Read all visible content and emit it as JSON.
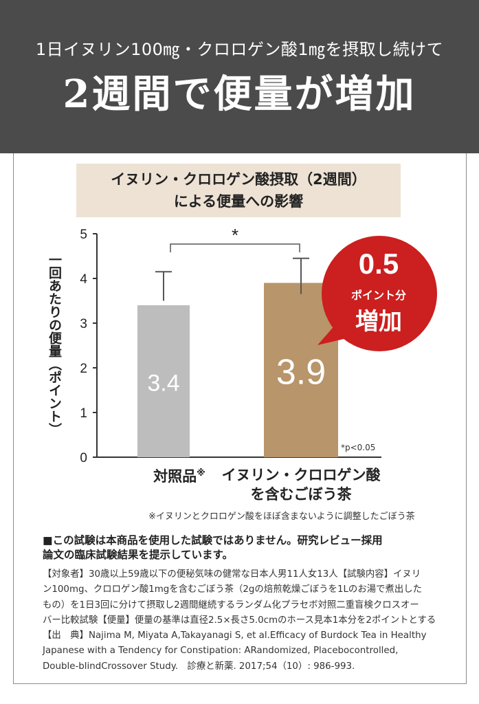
{
  "header": {
    "subtitle": "1日イヌリン100㎎・クロロゲン酸1㎎を摂取し続けて",
    "title": "2週間で便量が増加"
  },
  "chart_box": {
    "line1": "イヌリン・クロロゲン酸摂取（2週間）",
    "line2": "による便量への影響"
  },
  "chart_data": {
    "type": "bar",
    "title": "イヌリン・クロロゲン酸摂取（2週間）による便量への影響",
    "ylabel": "一回あたりの便量（ポイント）",
    "ylim": [
      0,
      5
    ],
    "yticks": [
      "0",
      "1",
      "2",
      "3",
      "4",
      "5"
    ],
    "categories": [
      "対照品※",
      "イヌリン・クロロゲン酸を含むごぼう茶"
    ],
    "values": [
      3.4,
      3.9
    ],
    "error_upper": [
      4.15,
      4.45
    ],
    "error_lower": [
      3.5,
      3.65
    ],
    "bar_labels": [
      "3.4",
      "3.9"
    ],
    "bar_colors": [
      "#bdbdbd",
      "#b8956a"
    ],
    "significance": "*",
    "significance_note": "*p<0.05",
    "grid": false
  },
  "categories_display": {
    "control_label": "対照品",
    "control_mark": "※",
    "treat_line1": "イヌリン・クロロゲン酸",
    "treat_line2": "を含むごぼう茶"
  },
  "callout": {
    "value": "0.5",
    "unit": "ポイント分",
    "word": "増加",
    "color": "#cc1f1f"
  },
  "footnote": "※イヌリンとクロロゲン酸をほぼ含まないように調整したごぼう茶",
  "disclaimer": {
    "line1": "■この試験は本商品を使用した試験ではありません。研究レビュー採用",
    "line2": "論文の臨床試験結果を提示しています。"
  },
  "details": [
    "【対象者】30歳以上59歳以下の便秘気味の健常な日本人男11人女13人【試験内容】イヌリ",
    "ン100mg、クロロゲン酸1mgを含むごぼう茶（2gの焙煎乾燥ごぼうを1Lのお湯で煮出した",
    "もの）を1日3回に分けて摂取し2週間継続するランダム化プラセボ対照二重盲検クロスオー",
    "バー比較試験【便量】便量の基準は直径2.5×長さ5.0cmのホース見本1本分を2ポイントとする",
    "【出　典】Najima M, Miyata A,Takayanagi S, et al.Efficacy of Burdock Tea in Healthy",
    "Japanese with a Tendency for Constipation: ARandomized, Placebocontrolled,",
    "Double-blindCrossover Study.　診療と新薬. 2017;54（10）: 986-993."
  ]
}
